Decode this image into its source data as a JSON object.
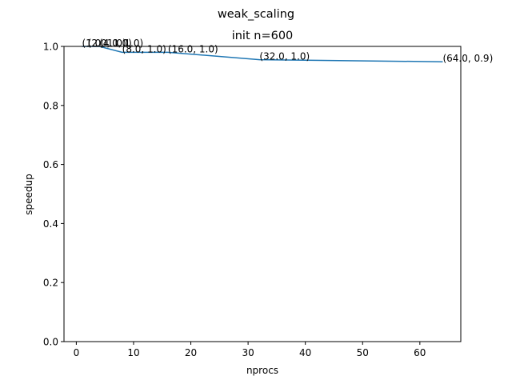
{
  "chart_data": {
    "type": "line",
    "suptitle": "weak_scaling",
    "title": "init n=600",
    "xlabel": "nprocs",
    "ylabel": "speedup",
    "xlim": [
      -2.15,
      67.15
    ],
    "ylim": [
      0.0,
      1.0
    ],
    "xticks": [
      0,
      10,
      20,
      30,
      40,
      50,
      60
    ],
    "yticks": [
      0.0,
      0.2,
      0.4,
      0.6,
      0.8,
      1.0
    ],
    "xtick_labels": [
      "0",
      "10",
      "20",
      "30",
      "40",
      "50",
      "60"
    ],
    "ytick_labels": [
      "0.0",
      "0.2",
      "0.4",
      "0.6",
      "0.8",
      "1.0"
    ],
    "grid": false,
    "line_color": "#1f77b4",
    "series": [
      {
        "x": [
          1,
          2,
          4,
          8,
          16,
          32,
          64
        ],
        "y": [
          1.0,
          1.0,
          1.0,
          0.98,
          0.98,
          0.955,
          0.948
        ],
        "labels": [
          "(1.0, 1.0)",
          "(2.0, 1.0)",
          "(4.0, 1.0)",
          "(8.0, 1.0)",
          "(16.0, 1.0)",
          "(32.0, 1.0)",
          "(64.0, 0.9)"
        ]
      }
    ]
  }
}
